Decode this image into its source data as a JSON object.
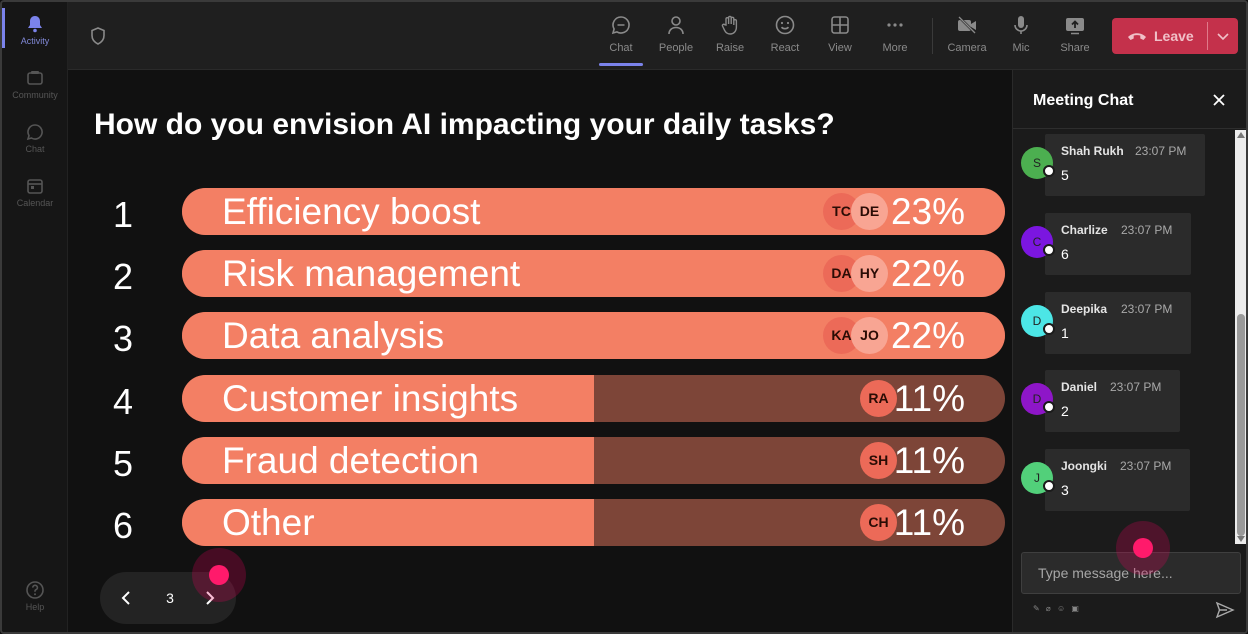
{
  "rail": {
    "items": [
      {
        "label": "Activity",
        "icon": "bell-icon",
        "active": true
      },
      {
        "label": "Community",
        "icon": "community-icon",
        "active": false
      },
      {
        "label": "Chat",
        "icon": "chat-icon",
        "active": false
      },
      {
        "label": "Calendar",
        "icon": "calendar-icon",
        "active": false
      }
    ],
    "help_label": "Help"
  },
  "toolbar": {
    "buttons": [
      {
        "label": "Chat",
        "icon": "chat-icon",
        "active": true
      },
      {
        "label": "People",
        "icon": "people-icon"
      },
      {
        "label": "Raise",
        "icon": "hand-icon"
      },
      {
        "label": "React",
        "icon": "smile-icon"
      },
      {
        "label": "View",
        "icon": "grid-icon"
      },
      {
        "label": "More",
        "icon": "more-icon"
      },
      {
        "label": "Camera",
        "icon": "camera-off-icon"
      },
      {
        "label": "Mic",
        "icon": "mic-icon"
      },
      {
        "label": "Share",
        "icon": "share-icon"
      }
    ],
    "leave_label": "Leave",
    "leave_color": "#c4314b"
  },
  "poll": {
    "question": "How do you envision AI impacting your daily tasks?",
    "options": [
      {
        "num": "1",
        "label": "Efficiency boost",
        "percent": "23%",
        "fill": 1.0,
        "avatars": [
          "TC",
          "DE"
        ]
      },
      {
        "num": "2",
        "label": "Risk management",
        "percent": "22%",
        "fill": 1.0,
        "avatars": [
          "DA",
          "HY"
        ]
      },
      {
        "num": "3",
        "label": "Data analysis",
        "percent": "22%",
        "fill": 1.0,
        "avatars": [
          "KA",
          "JO"
        ]
      },
      {
        "num": "4",
        "label": "Customer insights",
        "percent": "11%",
        "fill": 0.5,
        "avatars": [
          "RA"
        ]
      },
      {
        "num": "5",
        "label": "Fraud detection",
        "percent": "11%",
        "fill": 0.5,
        "avatars": [
          "SH"
        ]
      },
      {
        "num": "6",
        "label": "Other",
        "percent": "11%",
        "fill": 0.5,
        "avatars": [
          "CH"
        ]
      }
    ],
    "bar_color": "#f37f64",
    "track_color": "#7d4538"
  },
  "pager": {
    "page": "3"
  },
  "chat": {
    "title": "Meeting Chat",
    "messages": [
      {
        "initial": "S",
        "name": "Shah Rukh",
        "time": "23:07 PM",
        "text": "5",
        "color": "#4caf50"
      },
      {
        "initial": "C",
        "name": "Charlize",
        "time": "23:07 PM",
        "text": "6",
        "color": "#7b16e0"
      },
      {
        "initial": "D",
        "name": "Deepika",
        "time": "23:07 PM",
        "text": "1",
        "color": "#4ce6e6"
      },
      {
        "initial": "D",
        "name": "Daniel",
        "time": "23:07 PM",
        "text": "2",
        "color": "#8e16c8"
      },
      {
        "initial": "J",
        "name": "Joongki",
        "time": "23:07 PM",
        "text": "3",
        "color": "#52d07a"
      }
    ],
    "input_placeholder": "Type message here..."
  }
}
